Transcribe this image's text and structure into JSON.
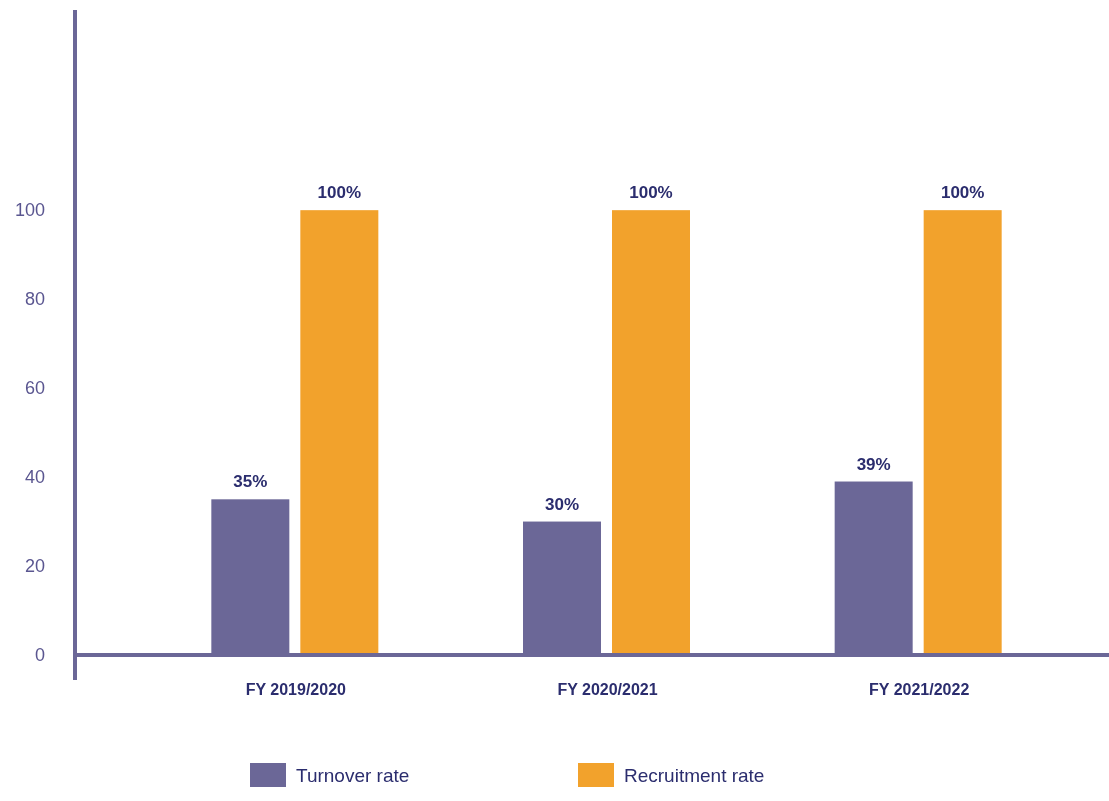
{
  "chart_data": {
    "type": "bar",
    "categories": [
      "FY 2019/2020",
      "FY 2020/2021",
      "FY 2021/2022"
    ],
    "series": [
      {
        "name": "Turnover rate",
        "color": "#6b6797",
        "values": [
          35,
          30,
          39
        ],
        "value_labels": [
          "35%",
          "30%",
          "39%"
        ]
      },
      {
        "name": "Recruitment rate",
        "color": "#f2a22c",
        "values": [
          100,
          100,
          100
        ],
        "value_labels": [
          "100%",
          "100%",
          "100%"
        ]
      }
    ],
    "ylim": [
      0,
      145
    ],
    "yticks": [
      0,
      20,
      40,
      60,
      80,
      100
    ],
    "grid": false,
    "legend": "bottom"
  }
}
